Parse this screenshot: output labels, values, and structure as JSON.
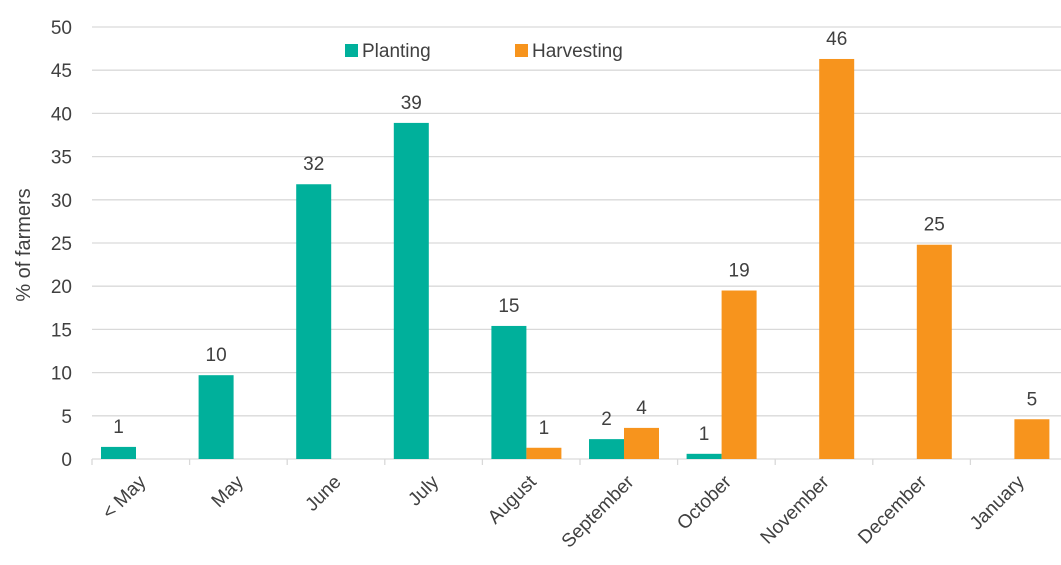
{
  "chart_data": {
    "type": "bar",
    "title": "",
    "xlabel": "",
    "ylabel": "% of farmers",
    "ylim": [
      0,
      50
    ],
    "yticks": [
      0,
      5,
      10,
      15,
      20,
      25,
      30,
      35,
      40,
      45,
      50
    ],
    "grid": true,
    "legend_position": "top-center",
    "categories": [
      "< May",
      "May",
      "June",
      "July",
      "August",
      "September",
      "October",
      "November",
      "December",
      "January"
    ],
    "series": [
      {
        "name": "Planting",
        "color": "#00b09b",
        "values": [
          1.4,
          9.7,
          31.8,
          38.9,
          15.4,
          2.3,
          0.6,
          null,
          null,
          null
        ],
        "labels": [
          "1",
          "10",
          "32",
          "39",
          "15",
          "2",
          "1",
          "",
          "",
          ""
        ]
      },
      {
        "name": "Harvesting",
        "color": "#f7941d",
        "values": [
          null,
          null,
          null,
          null,
          1.3,
          3.6,
          19.5,
          46.3,
          24.8,
          4.6
        ],
        "labels": [
          "",
          "",
          "",
          "",
          "1",
          "4",
          "19",
          "46",
          "25",
          "5"
        ]
      }
    ]
  }
}
